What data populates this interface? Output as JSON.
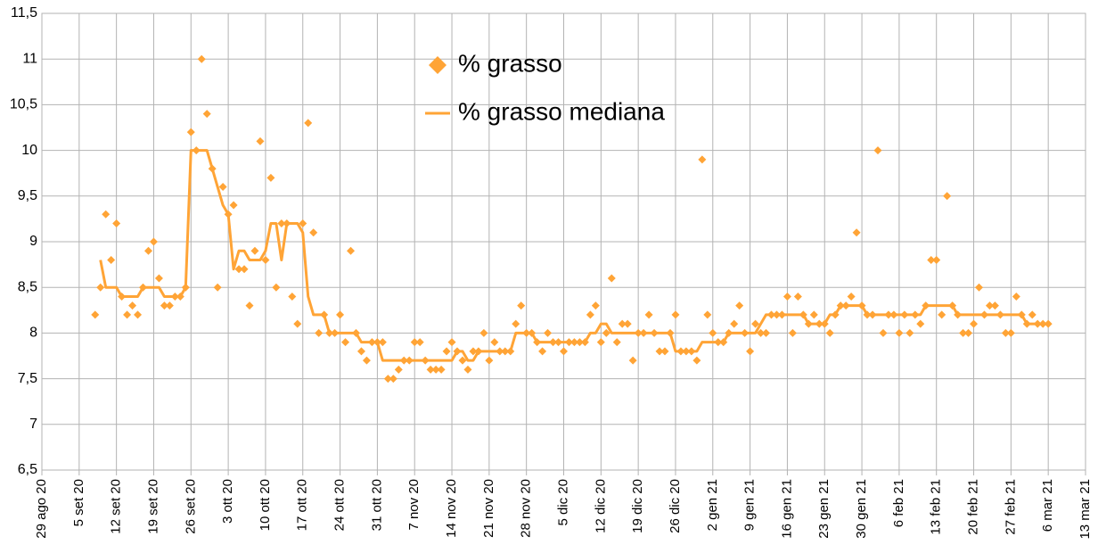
{
  "chart_data": {
    "type": "scatter",
    "x": [
      "2020-09-08",
      "2020-09-09",
      "2020-09-10",
      "2020-09-11",
      "2020-09-12",
      "2020-09-13",
      "2020-09-14",
      "2020-09-15",
      "2020-09-16",
      "2020-09-17",
      "2020-09-18",
      "2020-09-19",
      "2020-09-20",
      "2020-09-21",
      "2020-09-22",
      "2020-09-23",
      "2020-09-24",
      "2020-09-25",
      "2020-09-26",
      "2020-09-27",
      "2020-09-28",
      "2020-09-29",
      "2020-09-30",
      "2020-10-01",
      "2020-10-02",
      "2020-10-03",
      "2020-10-04",
      "2020-10-05",
      "2020-10-06",
      "2020-10-07",
      "2020-10-08",
      "2020-10-09",
      "2020-10-10",
      "2020-10-11",
      "2020-10-12",
      "2020-10-13",
      "2020-10-14",
      "2020-10-15",
      "2020-10-16",
      "2020-10-17",
      "2020-10-18",
      "2020-10-19",
      "2020-10-20",
      "2020-10-21",
      "2020-10-22",
      "2020-10-23",
      "2020-10-24",
      "2020-10-25",
      "2020-10-26",
      "2020-10-27",
      "2020-10-28",
      "2020-10-29",
      "2020-10-30",
      "2020-10-31",
      "2020-11-01",
      "2020-11-02",
      "2020-11-03",
      "2020-11-04",
      "2020-11-05",
      "2020-11-06",
      "2020-11-07",
      "2020-11-08",
      "2020-11-09",
      "2020-11-10",
      "2020-11-11",
      "2020-11-12",
      "2020-11-13",
      "2020-11-14",
      "2020-11-15",
      "2020-11-16",
      "2020-11-17",
      "2020-11-18",
      "2020-11-19",
      "2020-11-20",
      "2020-11-21",
      "2020-11-22",
      "2020-11-23",
      "2020-11-24",
      "2020-11-25",
      "2020-11-26",
      "2020-11-27",
      "2020-11-28",
      "2020-11-29",
      "2020-11-30",
      "2020-12-01",
      "2020-12-02",
      "2020-12-03",
      "2020-12-04",
      "2020-12-05",
      "2020-12-06",
      "2020-12-07",
      "2020-12-08",
      "2020-12-09",
      "2020-12-10",
      "2020-12-11",
      "2020-12-12",
      "2020-12-13",
      "2020-12-14",
      "2020-12-15",
      "2020-12-16",
      "2020-12-17",
      "2020-12-18",
      "2020-12-19",
      "2020-12-20",
      "2020-12-21",
      "2020-12-22",
      "2020-12-23",
      "2020-12-24",
      "2020-12-25",
      "2020-12-26",
      "2020-12-27",
      "2020-12-28",
      "2020-12-29",
      "2020-12-30",
      "2020-12-31",
      "2021-01-01",
      "2021-01-02",
      "2021-01-03",
      "2021-01-04",
      "2021-01-05",
      "2021-01-06",
      "2021-01-07",
      "2021-01-08",
      "2021-01-09",
      "2021-01-10",
      "2021-01-11",
      "2021-01-12",
      "2021-01-13",
      "2021-01-14",
      "2021-01-15",
      "2021-01-16",
      "2021-01-17",
      "2021-01-18",
      "2021-01-19",
      "2021-01-20",
      "2021-01-21",
      "2021-01-22",
      "2021-01-23",
      "2021-01-24",
      "2021-01-25",
      "2021-01-26",
      "2021-01-27",
      "2021-01-28",
      "2021-01-29",
      "2021-01-30",
      "2021-01-31",
      "2021-02-01",
      "2021-02-02",
      "2021-02-03",
      "2021-02-04",
      "2021-02-05",
      "2021-02-06",
      "2021-02-07",
      "2021-02-08",
      "2021-02-09",
      "2021-02-10",
      "2021-02-11",
      "2021-02-12",
      "2021-02-13",
      "2021-02-14",
      "2021-02-15",
      "2021-02-16",
      "2021-02-17",
      "2021-02-18",
      "2021-02-19",
      "2021-02-20",
      "2021-02-21",
      "2021-02-22",
      "2021-02-23",
      "2021-02-24",
      "2021-02-25",
      "2021-02-26",
      "2021-02-27",
      "2021-02-28",
      "2021-03-01",
      "2021-03-02",
      "2021-03-03",
      "2021-03-04",
      "2021-03-05",
      "2021-03-06"
    ],
    "series": [
      {
        "name": "% grasso",
        "type": "scatter",
        "color": "#ffa436",
        "values": [
          8.2,
          8.5,
          9.3,
          8.8,
          9.2,
          8.4,
          8.2,
          8.3,
          8.2,
          8.5,
          8.9,
          9.0,
          8.6,
          8.3,
          8.3,
          8.4,
          8.4,
          8.5,
          10.2,
          10.0,
          11.0,
          10.4,
          9.8,
          8.5,
          9.6,
          9.3,
          9.4,
          8.7,
          8.7,
          8.3,
          8.9,
          10.1,
          8.8,
          9.7,
          8.5,
          9.2,
          9.2,
          8.4,
          8.1,
          9.2,
          10.3,
          9.1,
          8.0,
          8.2,
          8.0,
          8.0,
          8.2,
          7.9,
          8.9,
          8.0,
          7.8,
          7.7,
          7.9,
          7.9,
          7.9,
          7.5,
          7.5,
          7.6,
          7.7,
          7.7,
          7.9,
          7.9,
          7.7,
          7.6,
          7.6,
          7.6,
          7.8,
          7.9,
          7.8,
          7.7,
          7.6,
          7.8,
          7.8,
          8.0,
          7.7,
          7.9,
          7.8,
          7.8,
          7.8,
          8.1,
          8.3,
          8.0,
          8.0,
          7.9,
          7.8,
          8.0,
          7.9,
          7.9,
          7.8,
          7.9,
          7.9,
          7.9,
          7.9,
          8.2,
          8.3,
          7.9,
          8.0,
          8.6,
          7.9,
          8.1,
          8.1,
          7.7,
          8.0,
          8.0,
          8.2,
          8.0,
          7.8,
          7.8,
          8.0,
          8.2,
          7.8,
          7.8,
          7.8,
          7.7,
          9.9,
          8.2,
          8.0,
          7.9,
          7.9,
          8.0,
          8.1,
          8.3,
          8.0,
          7.8,
          8.1,
          8.0,
          8.0,
          8.2,
          8.2,
          8.2,
          8.4,
          8.0,
          8.4,
          8.2,
          8.1,
          8.2,
          8.1,
          8.1,
          8.0,
          8.2,
          8.3,
          8.3,
          8.4,
          9.1,
          8.3,
          8.2,
          8.2,
          10.0,
          8.0,
          8.2,
          8.2,
          8.0,
          8.2,
          8.0,
          8.2,
          8.1,
          8.3,
          8.8,
          8.8,
          8.2,
          9.5,
          8.3,
          8.2,
          8.0,
          8.0,
          8.1,
          8.5,
          8.2,
          8.3,
          8.3,
          8.2,
          8.0,
          8.0,
          8.4,
          8.2,
          8.1,
          8.2,
          8.1,
          8.1,
          8.1
        ]
      },
      {
        "name": "% grasso mediana",
        "type": "line",
        "color": "#ffa436",
        "values": [
          null,
          8.8,
          8.5,
          8.5,
          8.5,
          8.4,
          8.4,
          8.4,
          8.4,
          8.5,
          8.5,
          8.5,
          8.5,
          8.4,
          8.4,
          8.4,
          8.4,
          8.5,
          10.0,
          10.0,
          10.0,
          10.0,
          9.8,
          9.6,
          9.4,
          9.3,
          8.7,
          8.9,
          8.9,
          8.8,
          8.8,
          8.8,
          8.9,
          9.2,
          9.2,
          8.8,
          9.2,
          9.2,
          9.2,
          9.1,
          8.4,
          8.2,
          8.2,
          8.2,
          8.0,
          8.0,
          8.0,
          8.0,
          8.0,
          8.0,
          7.9,
          7.9,
          7.9,
          7.9,
          7.7,
          7.7,
          7.7,
          7.7,
          7.7,
          7.7,
          7.7,
          7.7,
          7.7,
          7.7,
          7.7,
          7.7,
          7.7,
          7.7,
          7.8,
          7.8,
          7.7,
          7.7,
          7.8,
          7.8,
          7.8,
          7.8,
          7.8,
          7.8,
          7.8,
          8.0,
          8.0,
          8.0,
          8.0,
          7.9,
          7.9,
          7.9,
          7.9,
          7.9,
          7.9,
          7.9,
          7.9,
          7.9,
          7.9,
          8.0,
          8.0,
          8.1,
          8.1,
          8.0,
          8.0,
          8.0,
          8.0,
          8.0,
          8.0,
          8.0,
          8.0,
          8.0,
          8.0,
          8.0,
          8.0,
          7.8,
          7.8,
          7.8,
          7.8,
          7.8,
          7.9,
          7.9,
          7.9,
          7.9,
          7.9,
          8.0,
          8.0,
          8.0,
          8.0,
          8.0,
          8.0,
          8.1,
          8.2,
          8.2,
          8.2,
          8.2,
          8.2,
          8.2,
          8.2,
          8.2,
          8.1,
          8.1,
          8.1,
          8.1,
          8.2,
          8.2,
          8.3,
          8.3,
          8.3,
          8.3,
          8.3,
          8.2,
          8.2,
          8.2,
          8.2,
          8.2,
          8.2,
          8.2,
          8.2,
          8.2,
          8.2,
          8.2,
          8.3,
          8.3,
          8.3,
          8.3,
          8.3,
          8.3,
          8.2,
          8.2,
          8.2,
          8.2,
          8.2,
          8.2,
          8.2,
          8.2,
          8.2,
          8.2,
          8.2,
          8.2,
          8.2,
          8.1,
          8.1,
          8.1,
          8.1,
          8.1
        ]
      }
    ],
    "xlim": [
      "2020-08-29",
      "2021-03-13"
    ],
    "xticks": [
      {
        "value": "2020-08-29",
        "label": "29 ago 20"
      },
      {
        "value": "2020-09-05",
        "label": "5 set 20"
      },
      {
        "value": "2020-09-12",
        "label": "12 set 20"
      },
      {
        "value": "2020-09-19",
        "label": "19 set 20"
      },
      {
        "value": "2020-09-26",
        "label": "26 set 20"
      },
      {
        "value": "2020-10-03",
        "label": "3 ott 20"
      },
      {
        "value": "2020-10-10",
        "label": "10 ott 20"
      },
      {
        "value": "2020-10-17",
        "label": "17 ott 20"
      },
      {
        "value": "2020-10-24",
        "label": "24 ott 20"
      },
      {
        "value": "2020-10-31",
        "label": "31 ott 20"
      },
      {
        "value": "2020-11-07",
        "label": "7 nov 20"
      },
      {
        "value": "2020-11-14",
        "label": "14 nov 20"
      },
      {
        "value": "2020-11-21",
        "label": "21 nov 20"
      },
      {
        "value": "2020-11-28",
        "label": "28 nov 20"
      },
      {
        "value": "2020-12-05",
        "label": "5 dic 20"
      },
      {
        "value": "2020-12-12",
        "label": "12 dic 20"
      },
      {
        "value": "2020-12-19",
        "label": "19 dic 20"
      },
      {
        "value": "2020-12-26",
        "label": "26 dic 20"
      },
      {
        "value": "2021-01-02",
        "label": "2 gen 21"
      },
      {
        "value": "2021-01-09",
        "label": "9 gen 21"
      },
      {
        "value": "2021-01-16",
        "label": "16 gen 21"
      },
      {
        "value": "2021-01-23",
        "label": "23 gen 21"
      },
      {
        "value": "2021-01-30",
        "label": "30 gen 21"
      },
      {
        "value": "2021-02-06",
        "label": "6 feb 21"
      },
      {
        "value": "2021-02-13",
        "label": "13 feb 21"
      },
      {
        "value": "2021-02-20",
        "label": "20 feb 21"
      },
      {
        "value": "2021-02-27",
        "label": "27 feb 21"
      },
      {
        "value": "2021-03-06",
        "label": "6 mar 21"
      },
      {
        "value": "2021-03-13",
        "label": "13 mar 21"
      }
    ],
    "ylim": [
      6.5,
      11.5
    ],
    "yticks": [
      {
        "value": 6.5,
        "label": "6,5"
      },
      7,
      {
        "value": 7.5,
        "label": "7,5"
      },
      8,
      {
        "value": 8.5,
        "label": "8,5"
      },
      9,
      {
        "value": 9.5,
        "label": "9,5"
      },
      10,
      {
        "value": 10.5,
        "label": "10,5"
      },
      11,
      {
        "value": 11.5,
        "label": "11,5"
      }
    ],
    "grid": true,
    "legend": "top"
  }
}
